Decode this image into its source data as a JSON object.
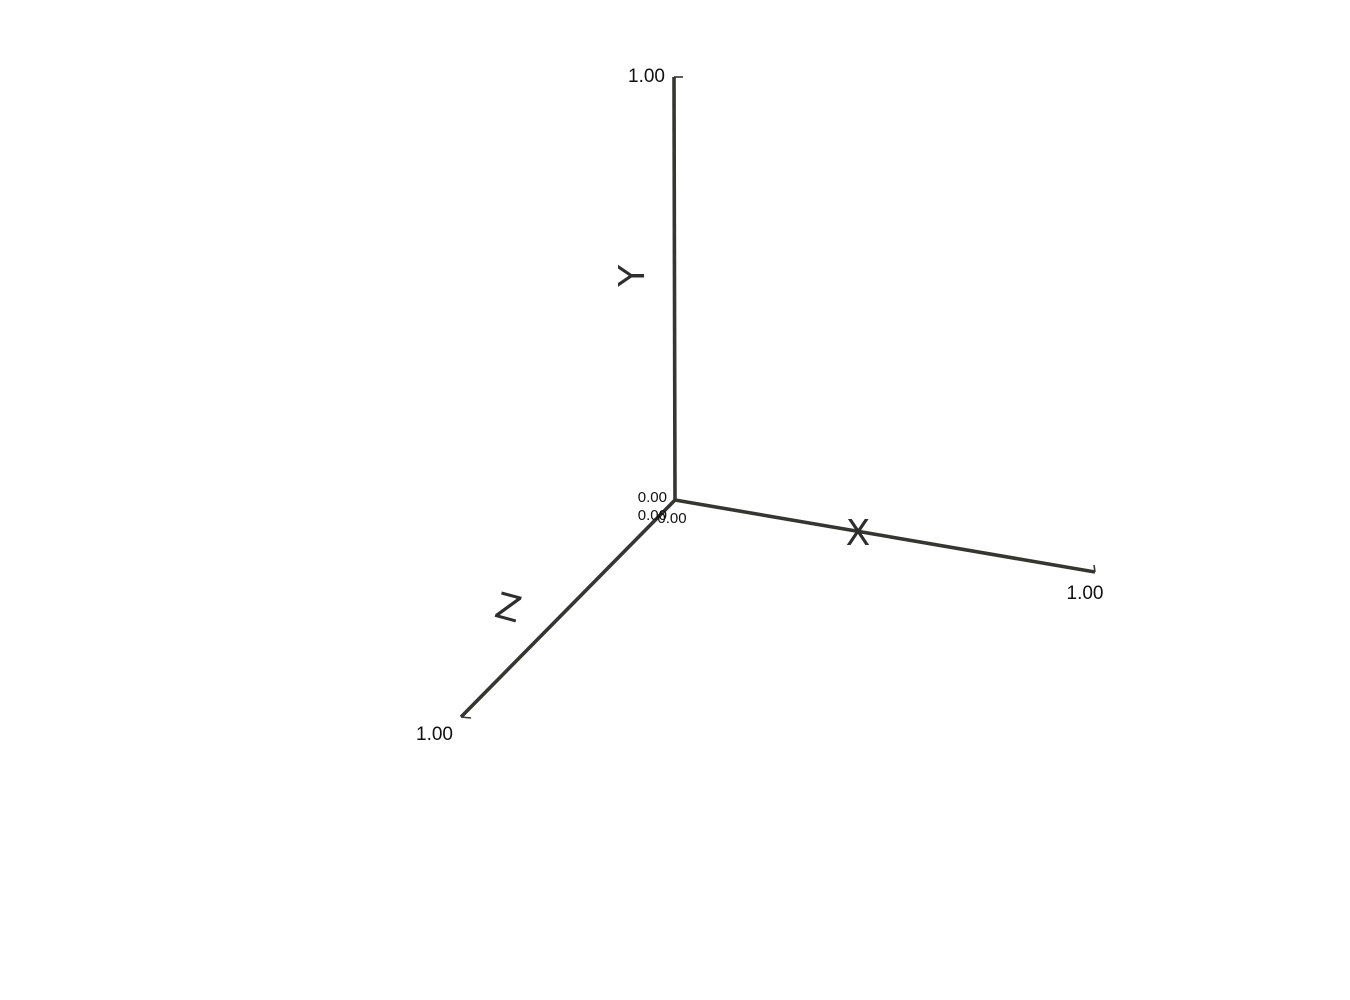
{
  "chart_data": {
    "type": "scatter",
    "projection": "3d-perspective",
    "series": [],
    "axes": {
      "x": {
        "label": "X",
        "range": [
          0,
          1
        ],
        "ticks": [
          "0.00",
          "1.00"
        ]
      },
      "y": {
        "label": "Y",
        "range": [
          0,
          1
        ],
        "ticks": [
          "0.00",
          "1.00"
        ]
      },
      "z": {
        "label": "Z",
        "range": [
          0,
          1
        ],
        "ticks": [
          "0.00",
          "1.00"
        ]
      }
    },
    "grid": false,
    "legend": "none",
    "axis_color": "#363631"
  }
}
